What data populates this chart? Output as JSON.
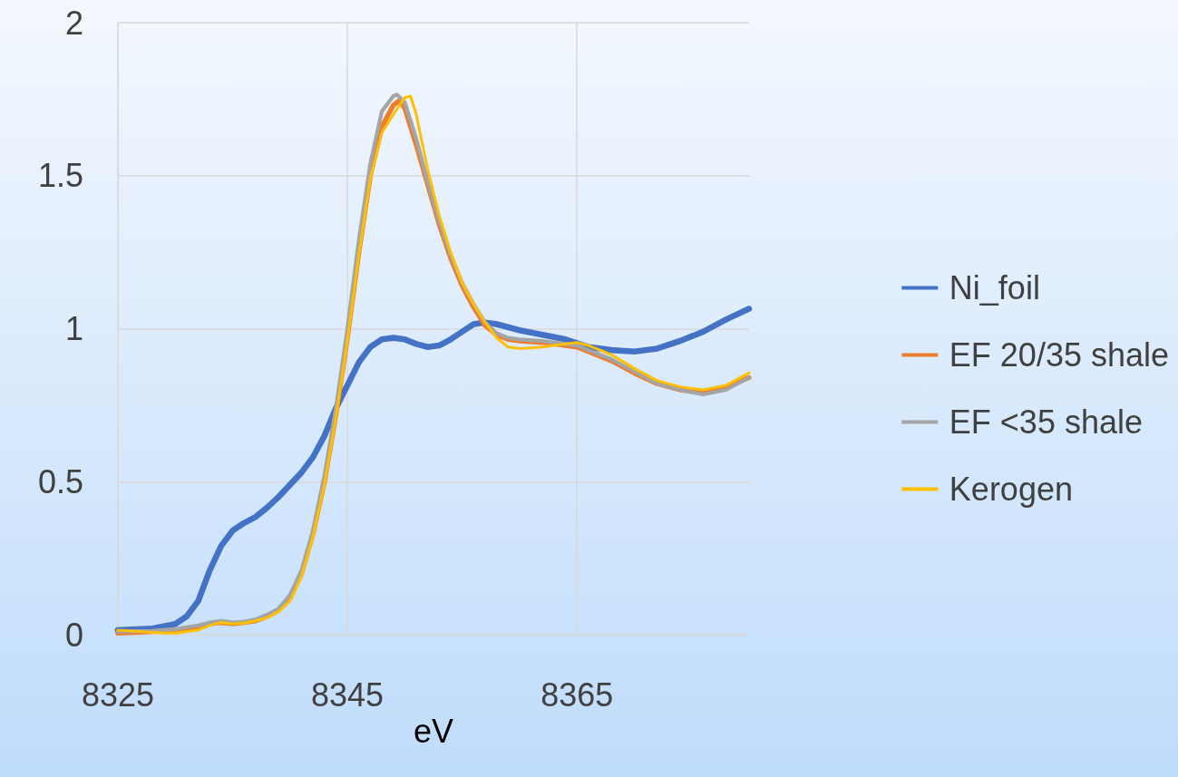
{
  "chart_data": {
    "type": "line",
    "xlabel": "eV",
    "xlim": [
      8325,
      8380
    ],
    "xticks": [
      8325,
      8345,
      8365
    ],
    "ylim": [
      0,
      2
    ],
    "yticks": [
      0,
      0.5,
      1,
      1.5,
      2
    ],
    "grid": true,
    "legend": "right",
    "marker": "none",
    "line_style": "solid",
    "series": [
      {
        "name": "Ni_foil",
        "color": "#4472c4",
        "x": [
          8325,
          8328,
          8330,
          8331,
          8332,
          8333,
          8334,
          8335,
          8336,
          8337,
          8338,
          8339,
          8340,
          8341,
          8342,
          8343,
          8344,
          8345,
          8346,
          8347,
          8348,
          8349,
          8350,
          8351,
          8352,
          8353,
          8354,
          8355,
          8356,
          8357,
          8358,
          8360,
          8362,
          8364,
          8366,
          8368,
          8370,
          8372,
          8374,
          8376,
          8378,
          8380
        ],
        "values": [
          0.015,
          0.02,
          0.035,
          0.06,
          0.11,
          0.21,
          0.29,
          0.34,
          0.365,
          0.385,
          0.415,
          0.45,
          0.49,
          0.53,
          0.58,
          0.65,
          0.74,
          0.815,
          0.89,
          0.94,
          0.965,
          0.97,
          0.965,
          0.95,
          0.94,
          0.945,
          0.965,
          0.99,
          1.015,
          1.02,
          1.015,
          0.995,
          0.98,
          0.965,
          0.94,
          0.93,
          0.925,
          0.935,
          0.96,
          0.99,
          1.03,
          1.065
        ]
      },
      {
        "name": "EF 20/35 shale",
        "color": "#ed7d31",
        "x": [
          8325,
          8328,
          8330,
          8332,
          8333,
          8334,
          8335,
          8336,
          8337,
          8338,
          8339,
          8340,
          8341,
          8342,
          8343,
          8344,
          8345,
          8346,
          8347,
          8348,
          8349,
          8349.5,
          8350,
          8351,
          8352,
          8353,
          8354,
          8355,
          8356,
          8357,
          8358,
          8359,
          8360,
          8362,
          8364,
          8365,
          8366,
          8368,
          8370,
          8372,
          8374,
          8376,
          8378,
          8380
        ],
        "values": [
          0.005,
          0.01,
          0.015,
          0.025,
          0.035,
          0.04,
          0.035,
          0.04,
          0.045,
          0.06,
          0.08,
          0.12,
          0.2,
          0.33,
          0.5,
          0.72,
          0.97,
          1.25,
          1.5,
          1.66,
          1.73,
          1.745,
          1.72,
          1.6,
          1.47,
          1.34,
          1.23,
          1.14,
          1.07,
          1.01,
          0.98,
          0.965,
          0.96,
          0.955,
          0.945,
          0.94,
          0.925,
          0.895,
          0.855,
          0.82,
          0.8,
          0.79,
          0.81,
          0.84
        ]
      },
      {
        "name": "EF <35 shale",
        "color": "#a5a5a5",
        "x": [
          8325,
          8328,
          8330,
          8332,
          8333,
          8334,
          8335,
          8336,
          8337,
          8338,
          8339,
          8340,
          8341,
          8342,
          8343,
          8344,
          8345,
          8346,
          8347,
          8348,
          8349,
          8349.3,
          8350,
          8351,
          8352,
          8353,
          8354,
          8355,
          8356,
          8357,
          8358,
          8359,
          8360,
          8362,
          8364,
          8365,
          8366,
          8368,
          8370,
          8372,
          8374,
          8376,
          8378,
          8380
        ],
        "values": [
          0.01,
          0.012,
          0.018,
          0.03,
          0.04,
          0.045,
          0.04,
          0.042,
          0.05,
          0.065,
          0.085,
          0.13,
          0.21,
          0.34,
          0.52,
          0.74,
          1.0,
          1.29,
          1.54,
          1.71,
          1.76,
          1.765,
          1.74,
          1.62,
          1.48,
          1.35,
          1.24,
          1.15,
          1.08,
          1.02,
          0.985,
          0.97,
          0.965,
          0.96,
          0.95,
          0.945,
          0.93,
          0.9,
          0.86,
          0.82,
          0.8,
          0.785,
          0.8,
          0.84
        ]
      },
      {
        "name": "Kerogen",
        "color": "#ffc000",
        "x": [
          8325,
          8327,
          8329,
          8330,
          8332,
          8333,
          8334,
          8335,
          8336,
          8337,
          8338,
          8339,
          8340,
          8341,
          8342,
          8343,
          8344,
          8345,
          8346,
          8347,
          8348,
          8349,
          8350,
          8350.5,
          8351,
          8352,
          8353,
          8354,
          8355,
          8356,
          8357,
          8358,
          8359,
          8360,
          8362,
          8364,
          8365,
          8366,
          8368,
          8370,
          8372,
          8374,
          8376,
          8378,
          8380
        ],
        "values": [
          0.015,
          0.01,
          0.005,
          0.005,
          0.015,
          0.03,
          0.04,
          0.035,
          0.038,
          0.045,
          0.055,
          0.075,
          0.11,
          0.19,
          0.32,
          0.49,
          0.71,
          0.96,
          1.24,
          1.49,
          1.64,
          1.7,
          1.755,
          1.76,
          1.7,
          1.52,
          1.37,
          1.25,
          1.15,
          1.08,
          1.02,
          0.97,
          0.94,
          0.935,
          0.94,
          0.95,
          0.955,
          0.945,
          0.915,
          0.87,
          0.83,
          0.81,
          0.8,
          0.815,
          0.855
        ]
      }
    ]
  }
}
